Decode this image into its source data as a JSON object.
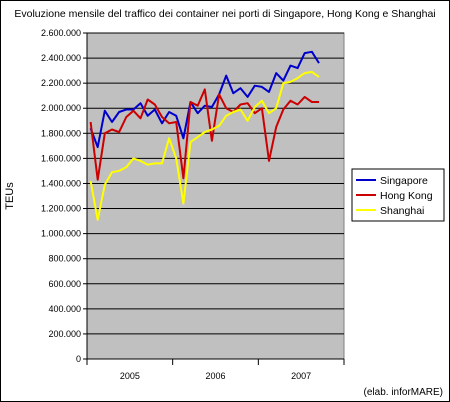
{
  "chart_data": {
    "type": "line",
    "title": "Evoluzione mensile del traffico dei container nei porti di Singapore, Hong Kong e Shanghai",
    "xlabel": "",
    "ylabel": "TEUs",
    "ylim": [
      0,
      2600000
    ],
    "y_ticks": [
      0,
      200000,
      400000,
      600000,
      800000,
      1000000,
      1200000,
      1400000,
      1600000,
      1800000,
      2000000,
      2200000,
      2400000,
      2600000
    ],
    "y_tick_labels": [
      "0",
      "200.000",
      "400.000",
      "600.000",
      "800.000",
      "1.000.000",
      "1.200.000",
      "1.400.000",
      "1.600.000",
      "1.800.000",
      "2.000.000",
      "2.200.000",
      "2.400.000",
      "2.600.000"
    ],
    "x_period_labels": [
      "2005",
      "2006",
      "2007"
    ],
    "x_period_months": [
      12,
      12,
      12
    ],
    "grid": true,
    "legend_position": "right",
    "plot_background": "#c0c0c0",
    "series": [
      {
        "name": "Singapore",
        "color": "#0000cc",
        "values": [
          1840000,
          1690000,
          1980000,
          1890000,
          1970000,
          1990000,
          1990000,
          2040000,
          1940000,
          1990000,
          1880000,
          1970000,
          1940000,
          1760000,
          2050000,
          1960000,
          2020000,
          2010000,
          2110000,
          2260000,
          2120000,
          2160000,
          2090000,
          2180000,
          2170000,
          2130000,
          2280000,
          2220000,
          2340000,
          2320000,
          2440000,
          2450000,
          2360000
        ]
      },
      {
        "name": "Hong Kong",
        "color": "#cc0000",
        "values": [
          1890000,
          1430000,
          1800000,
          1830000,
          1810000,
          1930000,
          1980000,
          1920000,
          2070000,
          2030000,
          1930000,
          1880000,
          1890000,
          1440000,
          2050000,
          2020000,
          2150000,
          1740000,
          2110000,
          2000000,
          1970000,
          2030000,
          2040000,
          1960000,
          2000000,
          1580000,
          1850000,
          1990000,
          2060000,
          2030000,
          2090000,
          2050000,
          2050000
        ]
      },
      {
        "name": "Shanghai",
        "color": "#ffff00",
        "values": [
          1420000,
          1110000,
          1390000,
          1490000,
          1500000,
          1530000,
          1600000,
          1580000,
          1550000,
          1560000,
          1560000,
          1760000,
          1600000,
          1240000,
          1730000,
          1770000,
          1810000,
          1830000,
          1860000,
          1940000,
          1970000,
          1990000,
          1900000,
          2010000,
          2060000,
          1960000,
          2000000,
          2200000,
          2210000,
          2240000,
          2280000,
          2290000,
          2250000
        ]
      }
    ]
  },
  "credit": "(elab. inforMARE)"
}
